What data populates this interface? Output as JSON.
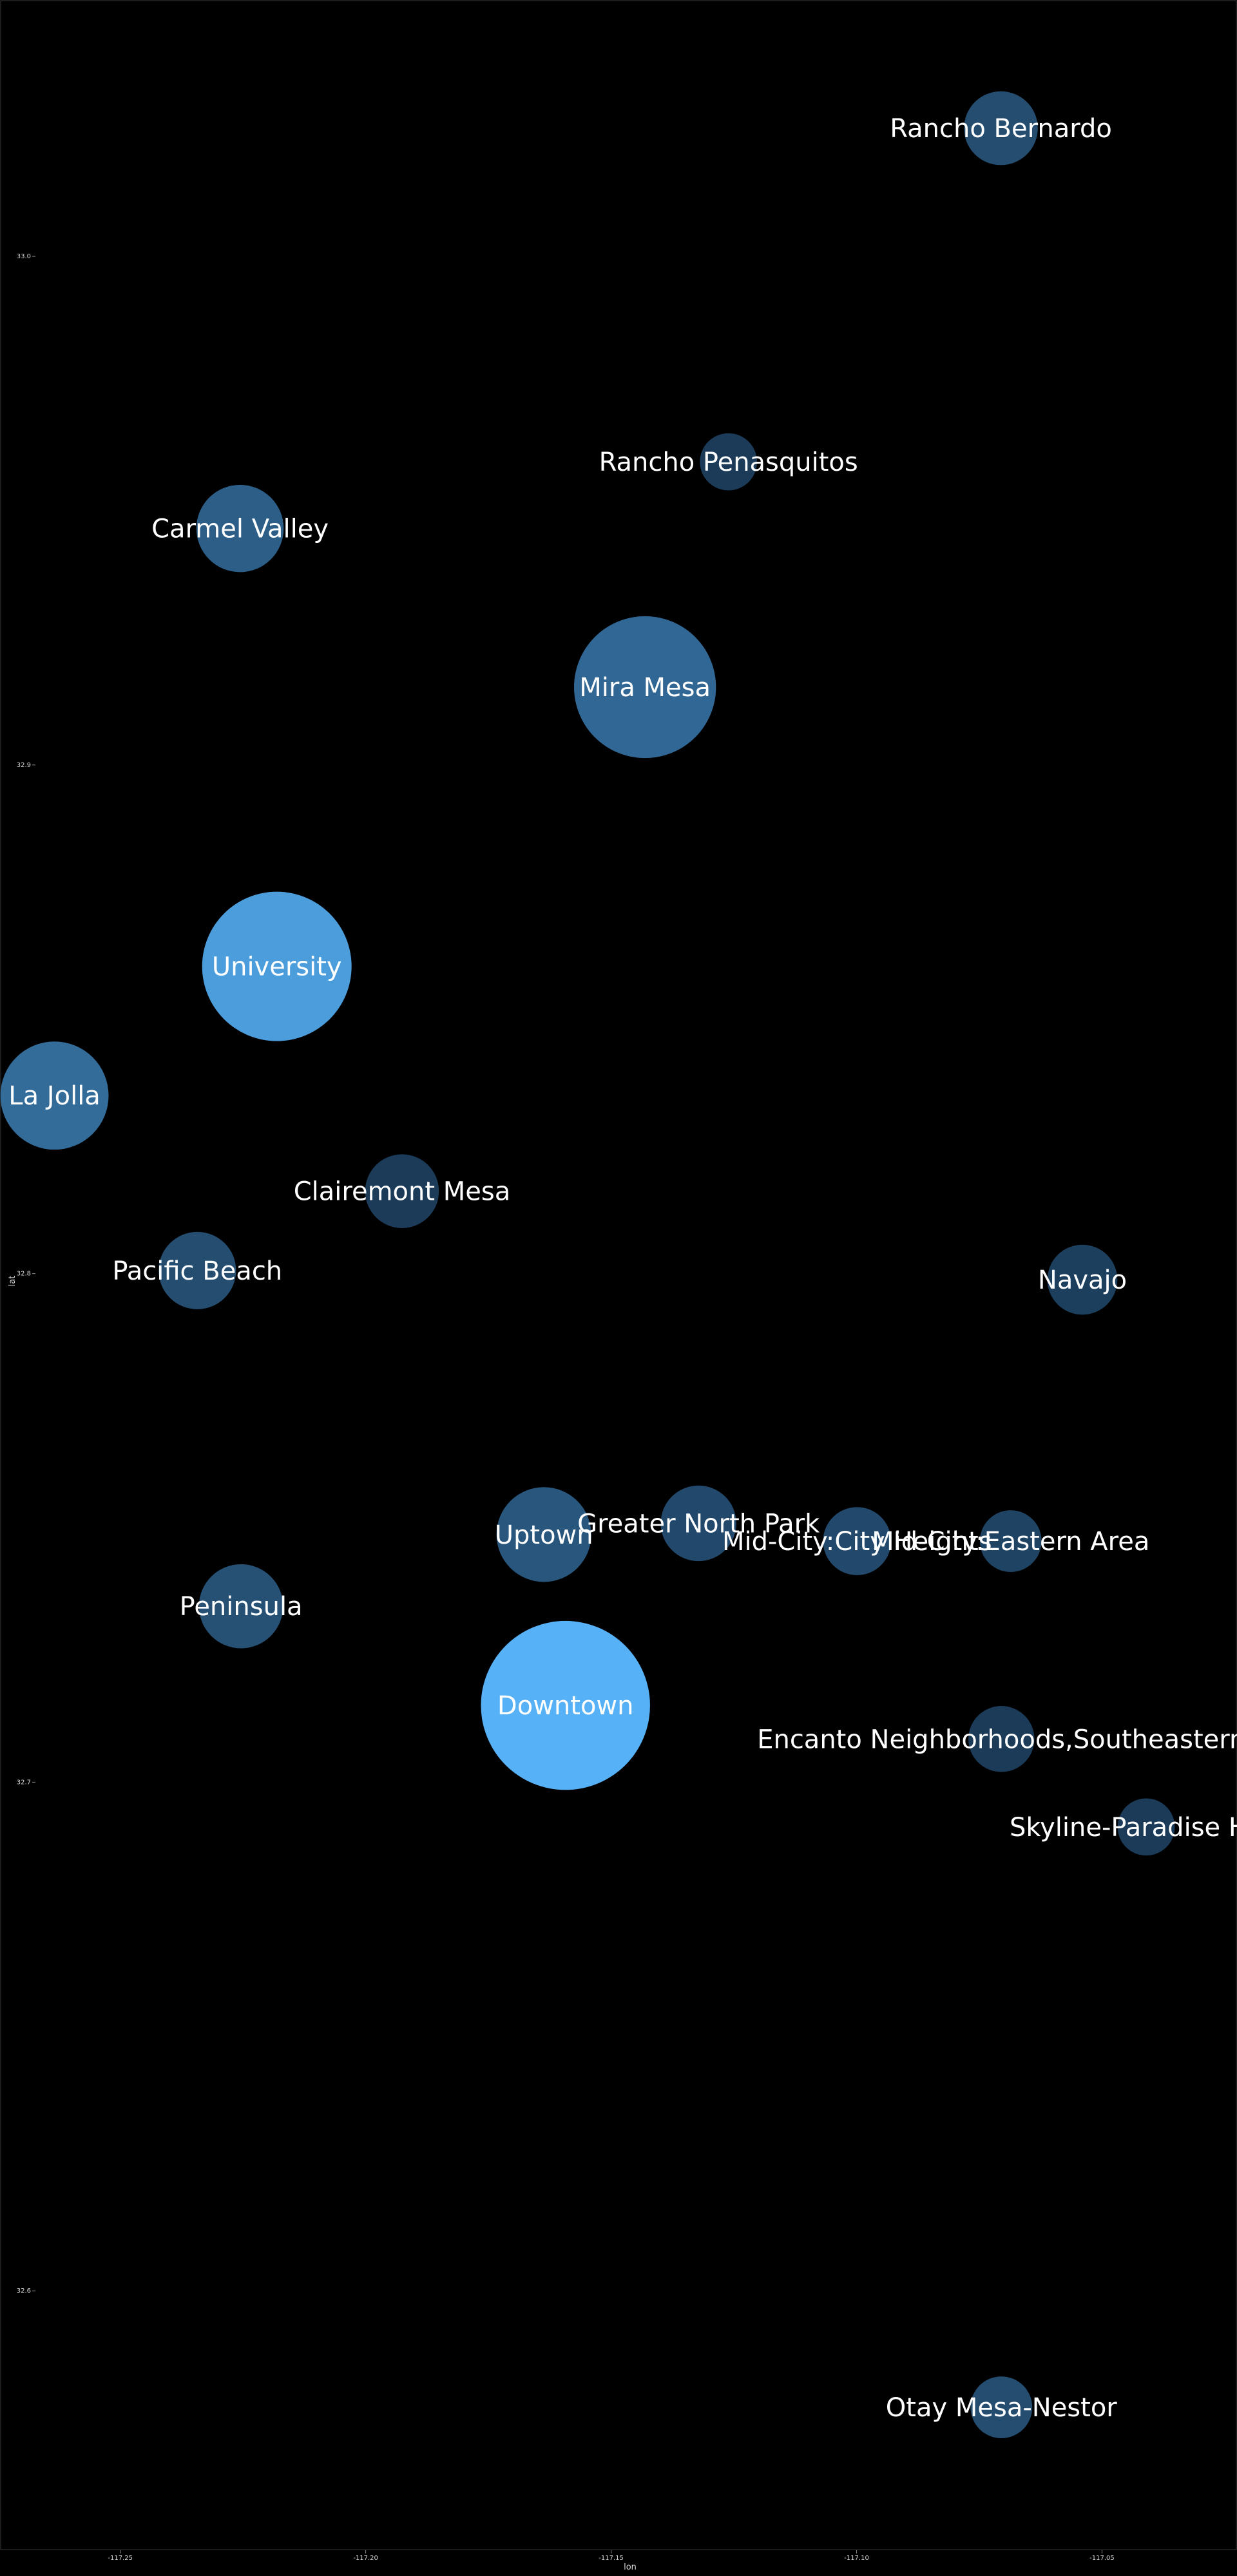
{
  "chart_data": {
    "type": "scatter",
    "title": "",
    "xlabel": "lon",
    "ylabel": "lat",
    "xlim": [
      -117.2745,
      -117.0225
    ],
    "ylim": [
      32.549,
      33.0504
    ],
    "x_ticks": [
      -117.25,
      -117.2,
      -117.15,
      -117.1,
      -117.05
    ],
    "x_tick_labels": [
      "-117.25",
      "-117.20",
      "-117.15",
      "-117.10",
      "-117.05"
    ],
    "y_ticks": [
      32.6,
      32.7,
      32.8,
      32.9,
      33.0
    ],
    "y_tick_labels": [
      "32.6",
      "32.7",
      "32.8",
      "32.9",
      "33.0"
    ],
    "grid": false,
    "legend": "none",
    "color_scale": {
      "low": "#132b43",
      "high": "#56b1f7"
    },
    "points": [
      {
        "label": "Rancho Bernardo",
        "lon": -117.0706,
        "lat": 33.0252,
        "size": 2,
        "shade": 0.25
      },
      {
        "label": "Rancho Penasquitos",
        "lon": -117.1261,
        "lat": 32.9596,
        "size": 1.2,
        "shade": 0.12
      },
      {
        "label": "Carmel Valley",
        "lon": -117.2256,
        "lat": 32.9465,
        "size": 2.8,
        "shade": 0.38
      },
      {
        "label": "Mira Mesa",
        "lon": -117.1431,
        "lat": 32.9153,
        "size": 7.4,
        "shade": 0.45
      },
      {
        "label": "University",
        "lon": -117.2181,
        "lat": 32.8604,
        "size": 8.2,
        "shade": 0.85
      },
      {
        "label": "La Jolla",
        "lon": -117.2634,
        "lat": 32.835,
        "size": 4.3,
        "shade": 0.48
      },
      {
        "label": "Clairemont Mesa",
        "lon": -117.1926,
        "lat": 32.8162,
        "size": 2,
        "shade": 0.12
      },
      {
        "label": "Pacific Beach",
        "lon": -117.2343,
        "lat": 32.8006,
        "size": 2.2,
        "shade": 0.25
      },
      {
        "label": "Navajo",
        "lon": -117.054,
        "lat": 32.7988,
        "size": 1.8,
        "shade": 0.15
      },
      {
        "label": "Uptown",
        "lon": -117.1637,
        "lat": 32.7487,
        "size": 3.3,
        "shade": 0.32
      },
      {
        "label": "Greater North Park",
        "lon": -117.1322,
        "lat": 32.7509,
        "size": 2.1,
        "shade": 0.22
      },
      {
        "label": "Mid-City:City Heights",
        "lon": -117.0999,
        "lat": 32.7474,
        "size": 1.7,
        "shade": 0.22
      },
      {
        "label": "Mid-City:Eastern Area",
        "lon": -117.0686,
        "lat": 32.7474,
        "size": 1.4,
        "shade": 0.18
      },
      {
        "label": "Peninsula",
        "lon": -117.2254,
        "lat": 32.7346,
        "size": 2.6,
        "shade": 0.28
      },
      {
        "label": "Downtown",
        "lon": -117.1593,
        "lat": 32.7151,
        "size": 10.5,
        "shade": 1.0
      },
      {
        "label": "Encanto Neighborhoods,Southeastern",
        "lon": -117.0705,
        "lat": 32.7085,
        "size": 1.6,
        "shade": 0.12
      },
      {
        "label": "Skyline-Paradise Hills",
        "lon": -117.041,
        "lat": 32.6912,
        "size": 1.2,
        "shade": 0.12
      },
      {
        "label": "Otay Mesa-Nestor",
        "lon": -117.0705,
        "lat": 32.5771,
        "size": 1.4,
        "shade": 0.25
      }
    ]
  }
}
